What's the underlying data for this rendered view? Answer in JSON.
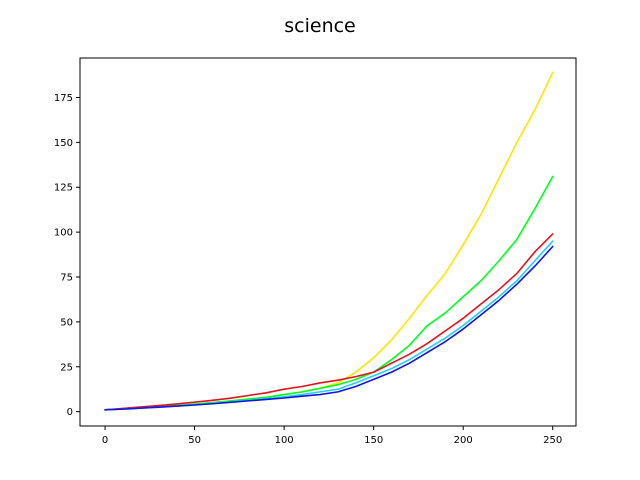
{
  "chart_data": {
    "type": "line",
    "title": "science",
    "xlabel": "",
    "ylabel": "",
    "xlim": [
      -14,
      263
    ],
    "ylim": [
      -8,
      197
    ],
    "xticks": [
      0,
      50,
      100,
      150,
      200,
      250
    ],
    "yticks": [
      0,
      25,
      50,
      75,
      100,
      125,
      150,
      175
    ],
    "grid": false,
    "legend": "none",
    "series": [
      {
        "color": "#ffe500",
        "x": [
          0,
          10,
          20,
          30,
          40,
          50,
          60,
          70,
          80,
          90,
          100,
          110,
          120,
          130,
          140,
          150,
          160,
          170,
          180,
          190,
          200,
          210,
          220,
          230,
          240,
          250
        ],
        "y": [
          1,
          1.5,
          2,
          2.7,
          3.4,
          4.2,
          5,
          6,
          7,
          8,
          9.5,
          11,
          13,
          16,
          22,
          30,
          40,
          52,
          65,
          77,
          93,
          110,
          130,
          150,
          168,
          189
        ]
      },
      {
        "color": "#00ff1e",
        "x": [
          0,
          10,
          20,
          30,
          40,
          50,
          60,
          70,
          80,
          90,
          100,
          110,
          120,
          130,
          140,
          150,
          160,
          170,
          180,
          190,
          200,
          210,
          220,
          230,
          240,
          250
        ],
        "y": [
          1,
          1.5,
          2,
          2.7,
          3.4,
          4.2,
          5,
          6,
          7,
          8,
          9.5,
          11,
          13,
          15,
          18,
          22,
          29,
          37,
          48,
          55,
          64,
          73,
          84,
          96,
          113,
          131
        ]
      },
      {
        "color": "#e5121e",
        "x": [
          0,
          10,
          20,
          30,
          40,
          50,
          60,
          70,
          80,
          90,
          100,
          110,
          120,
          130,
          140,
          150,
          160,
          170,
          180,
          190,
          200,
          210,
          220,
          230,
          240,
          250
        ],
        "y": [
          1,
          1.8,
          2.6,
          3.4,
          4.3,
          5.3,
          6.3,
          7.5,
          9,
          10.5,
          12.5,
          14,
          16,
          17.5,
          19.5,
          22,
          27,
          32,
          38,
          45,
          52,
          60,
          68,
          77,
          89,
          99
        ]
      },
      {
        "color": "#1ecfff",
        "x": [
          0,
          10,
          20,
          30,
          40,
          50,
          60,
          70,
          80,
          90,
          100,
          110,
          120,
          130,
          140,
          150,
          160,
          170,
          180,
          190,
          200,
          210,
          220,
          230,
          240,
          250
        ],
        "y": [
          1,
          1.4,
          2,
          2.5,
          3.1,
          3.8,
          4.5,
          5.4,
          6.3,
          7.2,
          8.3,
          9.5,
          11,
          12.5,
          16,
          20,
          24,
          29,
          35,
          41,
          48,
          56,
          64,
          73,
          84,
          95
        ]
      },
      {
        "color": "#1414e0",
        "x": [
          0,
          10,
          20,
          30,
          40,
          50,
          60,
          70,
          80,
          90,
          100,
          110,
          120,
          130,
          140,
          150,
          160,
          170,
          180,
          190,
          200,
          210,
          220,
          230,
          240,
          250
        ],
        "y": [
          1,
          1.4,
          2,
          2.5,
          3.1,
          3.7,
          4.4,
          5.2,
          6,
          6.8,
          7.6,
          8.6,
          9.5,
          11,
          14,
          18,
          22,
          27,
          33,
          39,
          46,
          54,
          62,
          71,
          81,
          92
        ]
      }
    ]
  }
}
